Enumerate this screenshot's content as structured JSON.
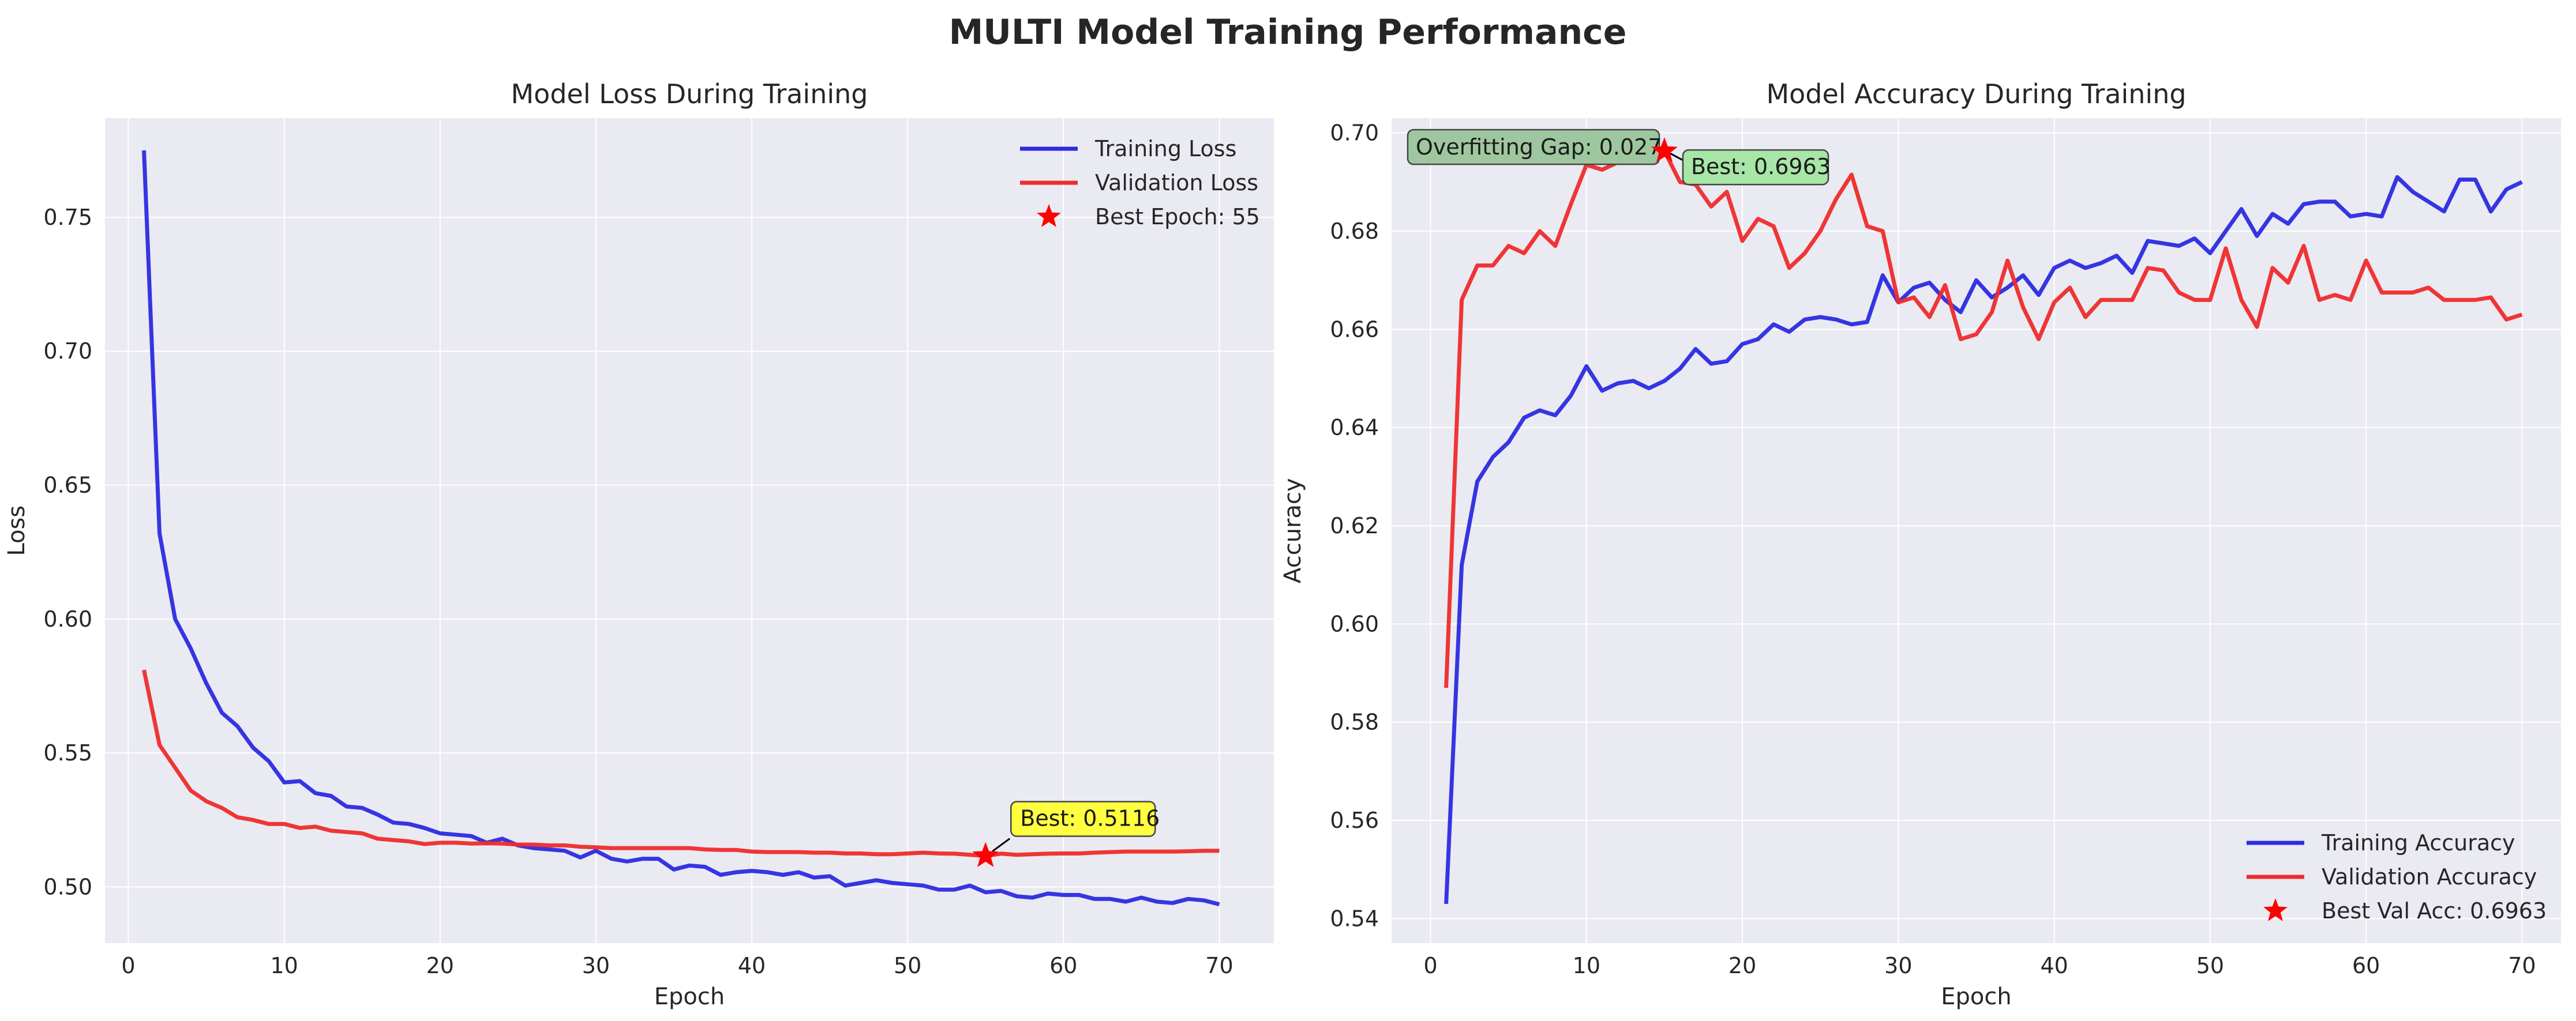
{
  "figure": {
    "suptitle": "MULTI Model Training Performance"
  },
  "colors": {
    "axes_background": "#eaeaf2",
    "grid": "#ffffff",
    "training": "#2b2be0",
    "validation": "#ef2b2b",
    "star": "#ff0000",
    "best_box": "#ffff40",
    "best_box_green": "#a8e6a8",
    "gap_box": "#9fc79f"
  },
  "chart_data": [
    {
      "type": "line",
      "title": "Model Loss During Training",
      "xlabel": "Epoch",
      "ylabel": "Loss",
      "xlim": [
        -1.5,
        73.5
      ],
      "ylim": [
        0.479,
        0.787
      ],
      "xticks": [
        0,
        10,
        20,
        30,
        40,
        50,
        60,
        70
      ],
      "yticks": [
        0.5,
        0.55,
        0.6,
        0.65,
        0.7,
        0.75
      ],
      "ytick_decimals": 2,
      "grid": true,
      "legend_position": "top-right",
      "x": [
        1,
        2,
        3,
        4,
        5,
        6,
        7,
        8,
        9,
        10,
        11,
        12,
        13,
        14,
        15,
        16,
        17,
        18,
        19,
        20,
        21,
        22,
        23,
        24,
        25,
        26,
        27,
        28,
        29,
        30,
        31,
        32,
        33,
        34,
        35,
        36,
        37,
        38,
        39,
        40,
        41,
        42,
        43,
        44,
        45,
        46,
        47,
        48,
        49,
        50,
        51,
        52,
        53,
        54,
        55,
        56,
        57,
        58,
        59,
        60,
        61,
        62,
        63,
        64,
        65,
        66,
        67,
        68,
        69,
        70
      ],
      "series": [
        {
          "name": "Training Loss",
          "color": "#2b2be0",
          "values": [
            0.775,
            0.632,
            0.6,
            0.589,
            0.576,
            0.565,
            0.56,
            0.552,
            0.547,
            0.539,
            0.5395,
            0.535,
            0.534,
            0.53,
            0.5295,
            0.527,
            0.524,
            0.5235,
            0.522,
            0.52,
            0.5195,
            0.519,
            0.5165,
            0.518,
            0.5155,
            0.5145,
            0.514,
            0.5135,
            0.511,
            0.5135,
            0.5105,
            0.5095,
            0.5105,
            0.5105,
            0.5065,
            0.508,
            0.5075,
            0.5045,
            0.5055,
            0.506,
            0.5055,
            0.5045,
            0.5055,
            0.5035,
            0.504,
            0.5005,
            0.5015,
            0.5025,
            0.5015,
            0.501,
            0.5005,
            0.499,
            0.499,
            0.5005,
            0.498,
            0.4985,
            0.4965,
            0.496,
            0.4975,
            0.497,
            0.497,
            0.4955,
            0.4955,
            0.4945,
            0.496,
            0.4945,
            0.494,
            0.4955,
            0.495,
            0.4935
          ]
        },
        {
          "name": "Validation Loss",
          "color": "#ef2b2b",
          "values": [
            0.581,
            0.553,
            0.5445,
            0.536,
            0.532,
            0.5295,
            0.526,
            0.525,
            0.5235,
            0.5235,
            0.522,
            0.5225,
            0.521,
            0.5205,
            0.52,
            0.518,
            0.5175,
            0.517,
            0.516,
            0.5165,
            0.5165,
            0.5162,
            0.5163,
            0.5162,
            0.5158,
            0.5158,
            0.5155,
            0.5155,
            0.515,
            0.5148,
            0.5145,
            0.5145,
            0.5145,
            0.5145,
            0.5145,
            0.5145,
            0.514,
            0.5138,
            0.5138,
            0.5132,
            0.513,
            0.513,
            0.513,
            0.5128,
            0.5128,
            0.5125,
            0.5125,
            0.5122,
            0.5122,
            0.5125,
            0.5128,
            0.5125,
            0.5124,
            0.512,
            0.5116,
            0.5124,
            0.512,
            0.5122,
            0.5124,
            0.5125,
            0.5125,
            0.5128,
            0.513,
            0.5132,
            0.5132,
            0.5132,
            0.5132,
            0.5133,
            0.5135,
            0.5135
          ]
        }
      ],
      "best_marker": {
        "x": 55,
        "y": 0.5116,
        "legend_label": "Best Epoch: 55",
        "annotation": "Best: 0.5116"
      }
    },
    {
      "type": "line",
      "title": "Model Accuracy During Training",
      "xlabel": "Epoch",
      "ylabel": "Accuracy",
      "xlim": [
        -2.5,
        72.5
      ],
      "ylim": [
        0.535,
        0.703
      ],
      "xticks": [
        0,
        10,
        20,
        30,
        40,
        50,
        60,
        70
      ],
      "yticks": [
        0.54,
        0.56,
        0.58,
        0.6,
        0.62,
        0.64,
        0.66,
        0.68,
        0.7
      ],
      "ytick_decimals": 2,
      "grid": true,
      "legend_position": "bottom-right",
      "x": [
        1,
        2,
        3,
        4,
        5,
        6,
        7,
        8,
        9,
        10,
        11,
        12,
        13,
        14,
        15,
        16,
        17,
        18,
        19,
        20,
        21,
        22,
        23,
        24,
        25,
        26,
        27,
        28,
        29,
        30,
        31,
        32,
        33,
        34,
        35,
        36,
        37,
        38,
        39,
        40,
        41,
        42,
        43,
        44,
        45,
        46,
        47,
        48,
        49,
        50,
        51,
        52,
        53,
        54,
        55,
        56,
        57,
        58,
        59,
        60,
        61,
        62,
        63,
        64,
        65,
        66,
        67,
        68,
        69,
        70
      ],
      "series": [
        {
          "name": "Training Accuracy",
          "color": "#2b2be0",
          "values": [
            0.543,
            0.612,
            0.629,
            0.634,
            0.637,
            0.642,
            0.6435,
            0.6425,
            0.6465,
            0.6525,
            0.6475,
            0.649,
            0.6495,
            0.648,
            0.6495,
            0.652,
            0.656,
            0.653,
            0.6535,
            0.657,
            0.658,
            0.661,
            0.6595,
            0.662,
            0.6625,
            0.662,
            0.661,
            0.6615,
            0.671,
            0.6655,
            0.6685,
            0.6695,
            0.666,
            0.6635,
            0.67,
            0.6665,
            0.6685,
            0.671,
            0.667,
            0.6725,
            0.674,
            0.6725,
            0.6735,
            0.675,
            0.6715,
            0.678,
            0.6775,
            0.677,
            0.6785,
            0.6755,
            0.68,
            0.6845,
            0.679,
            0.6835,
            0.6815,
            0.6855,
            0.686,
            0.686,
            0.683,
            0.6835,
            0.683,
            0.691,
            0.688,
            0.686,
            0.684,
            0.6905,
            0.6905,
            0.684,
            0.6885,
            0.69
          ]
        },
        {
          "name": "Validation Accuracy",
          "color": "#ef2b2b",
          "values": [
            0.587,
            0.666,
            0.673,
            0.673,
            0.677,
            0.6755,
            0.68,
            0.677,
            0.6855,
            0.6935,
            0.6925,
            0.694,
            0.694,
            0.694,
            0.6963,
            0.69,
            0.6895,
            0.685,
            0.688,
            0.678,
            0.6825,
            0.681,
            0.6725,
            0.6755,
            0.68,
            0.6865,
            0.6915,
            0.681,
            0.68,
            0.6655,
            0.6665,
            0.6625,
            0.669,
            0.658,
            0.659,
            0.6635,
            0.674,
            0.6645,
            0.658,
            0.6655,
            0.6685,
            0.6625,
            0.666,
            0.666,
            0.666,
            0.6725,
            0.672,
            0.6675,
            0.666,
            0.666,
            0.6765,
            0.666,
            0.6605,
            0.6725,
            0.6695,
            0.677,
            0.666,
            0.667,
            0.666,
            0.674,
            0.6675,
            0.6675,
            0.6675,
            0.6685,
            0.666,
            0.666,
            0.666,
            0.6665,
            0.662,
            0.663
          ]
        }
      ],
      "best_marker": {
        "x": 15,
        "y": 0.6963,
        "legend_label": "Best Val Acc: 0.6963",
        "annotation": "Best: 0.6963"
      },
      "gap_annotation": "Overfitting Gap: 0.027"
    }
  ]
}
